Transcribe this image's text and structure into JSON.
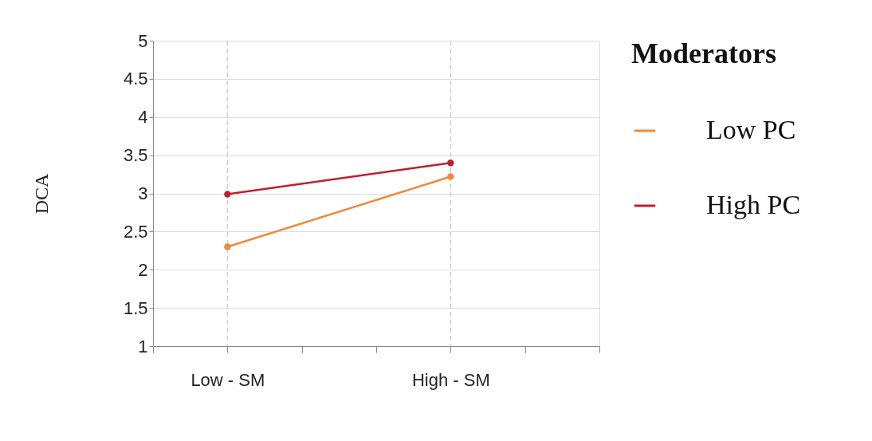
{
  "chart_data": {
    "type": "line",
    "ylabel": "DCA",
    "legend_title": "Moderators",
    "categories": [
      null,
      "Low - SM",
      null,
      null,
      "High - SM",
      null,
      null
    ],
    "series": [
      {
        "name": "Low PC",
        "color": "#f08a3c",
        "values": [
          null,
          2.3,
          null,
          null,
          3.22,
          null,
          null
        ]
      },
      {
        "name": "High PC",
        "color": "#c0202c",
        "values": [
          null,
          2.99,
          null,
          null,
          3.4,
          null,
          null
        ]
      }
    ],
    "ylim": [
      1,
      5
    ],
    "yticks": [
      1,
      1.5,
      2,
      2.5,
      3,
      3.5,
      4,
      4.5,
      5
    ],
    "grid": "y",
    "legend": "right",
    "marker": "circle",
    "line_style": "solid",
    "ref_lines": [
      {
        "axis": "x",
        "value": "Low - SM",
        "line_style": "dashed",
        "color": "#d0d0d0"
      },
      {
        "axis": "x",
        "value": "High - SM",
        "line_style": "dashed",
        "color": "#d0d0d0"
      }
    ]
  }
}
